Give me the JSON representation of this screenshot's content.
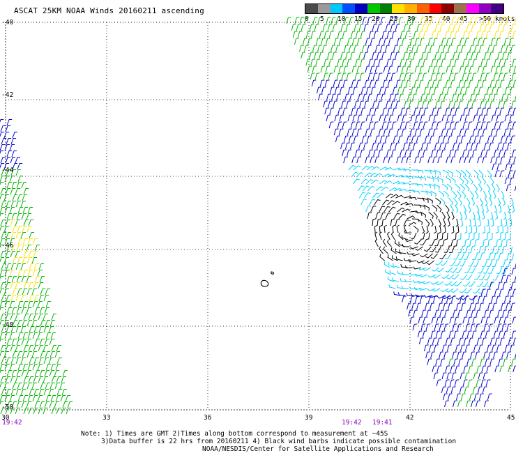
{
  "title": "ASCAT 25KM NOAA Winds 20160211 ascending",
  "legend": {
    "colors": [
      "#4a4a4a",
      "#9a9a9a",
      "#00c8ff",
      "#0050ff",
      "#0000c0",
      "#00c800",
      "#008000",
      "#ffe000",
      "#ffb000",
      "#ff6000",
      "#ff0000",
      "#8b0000",
      "#a0704a",
      "#ff00ff",
      "#9000c0",
      "#400080"
    ],
    "labels": [
      "0",
      "5",
      "10",
      "15",
      "20",
      "25",
      "30",
      "35",
      "40",
      "45",
      ">50 knots"
    ]
  },
  "lat_labels": [
    "-40",
    "-42",
    "-44",
    "-46",
    "-48",
    "-50"
  ],
  "lon_labels": [
    "30",
    "33",
    "36",
    "39",
    "42",
    "45"
  ],
  "time_labels": [
    "19:42",
    "19:42",
    "19:41"
  ],
  "notes": {
    "line1": "Note: 1) Times are GMT 2)Times along bottom correspond to measurement at ~45S",
    "line2": "3)Data buffer is 22 hrs from 20160211 4) Black wind barbs indicate possible contamination",
    "line3": "NOAA/NESDIS/Center for Satellite Applications and Research"
  },
  "colors": {
    "grid": "#000000",
    "speed_0_5": "#000000",
    "speed_10": "#00d0ff",
    "speed_15": "#0000cc",
    "speed_20": "#00b400",
    "speed_25": "#ffe000"
  }
}
